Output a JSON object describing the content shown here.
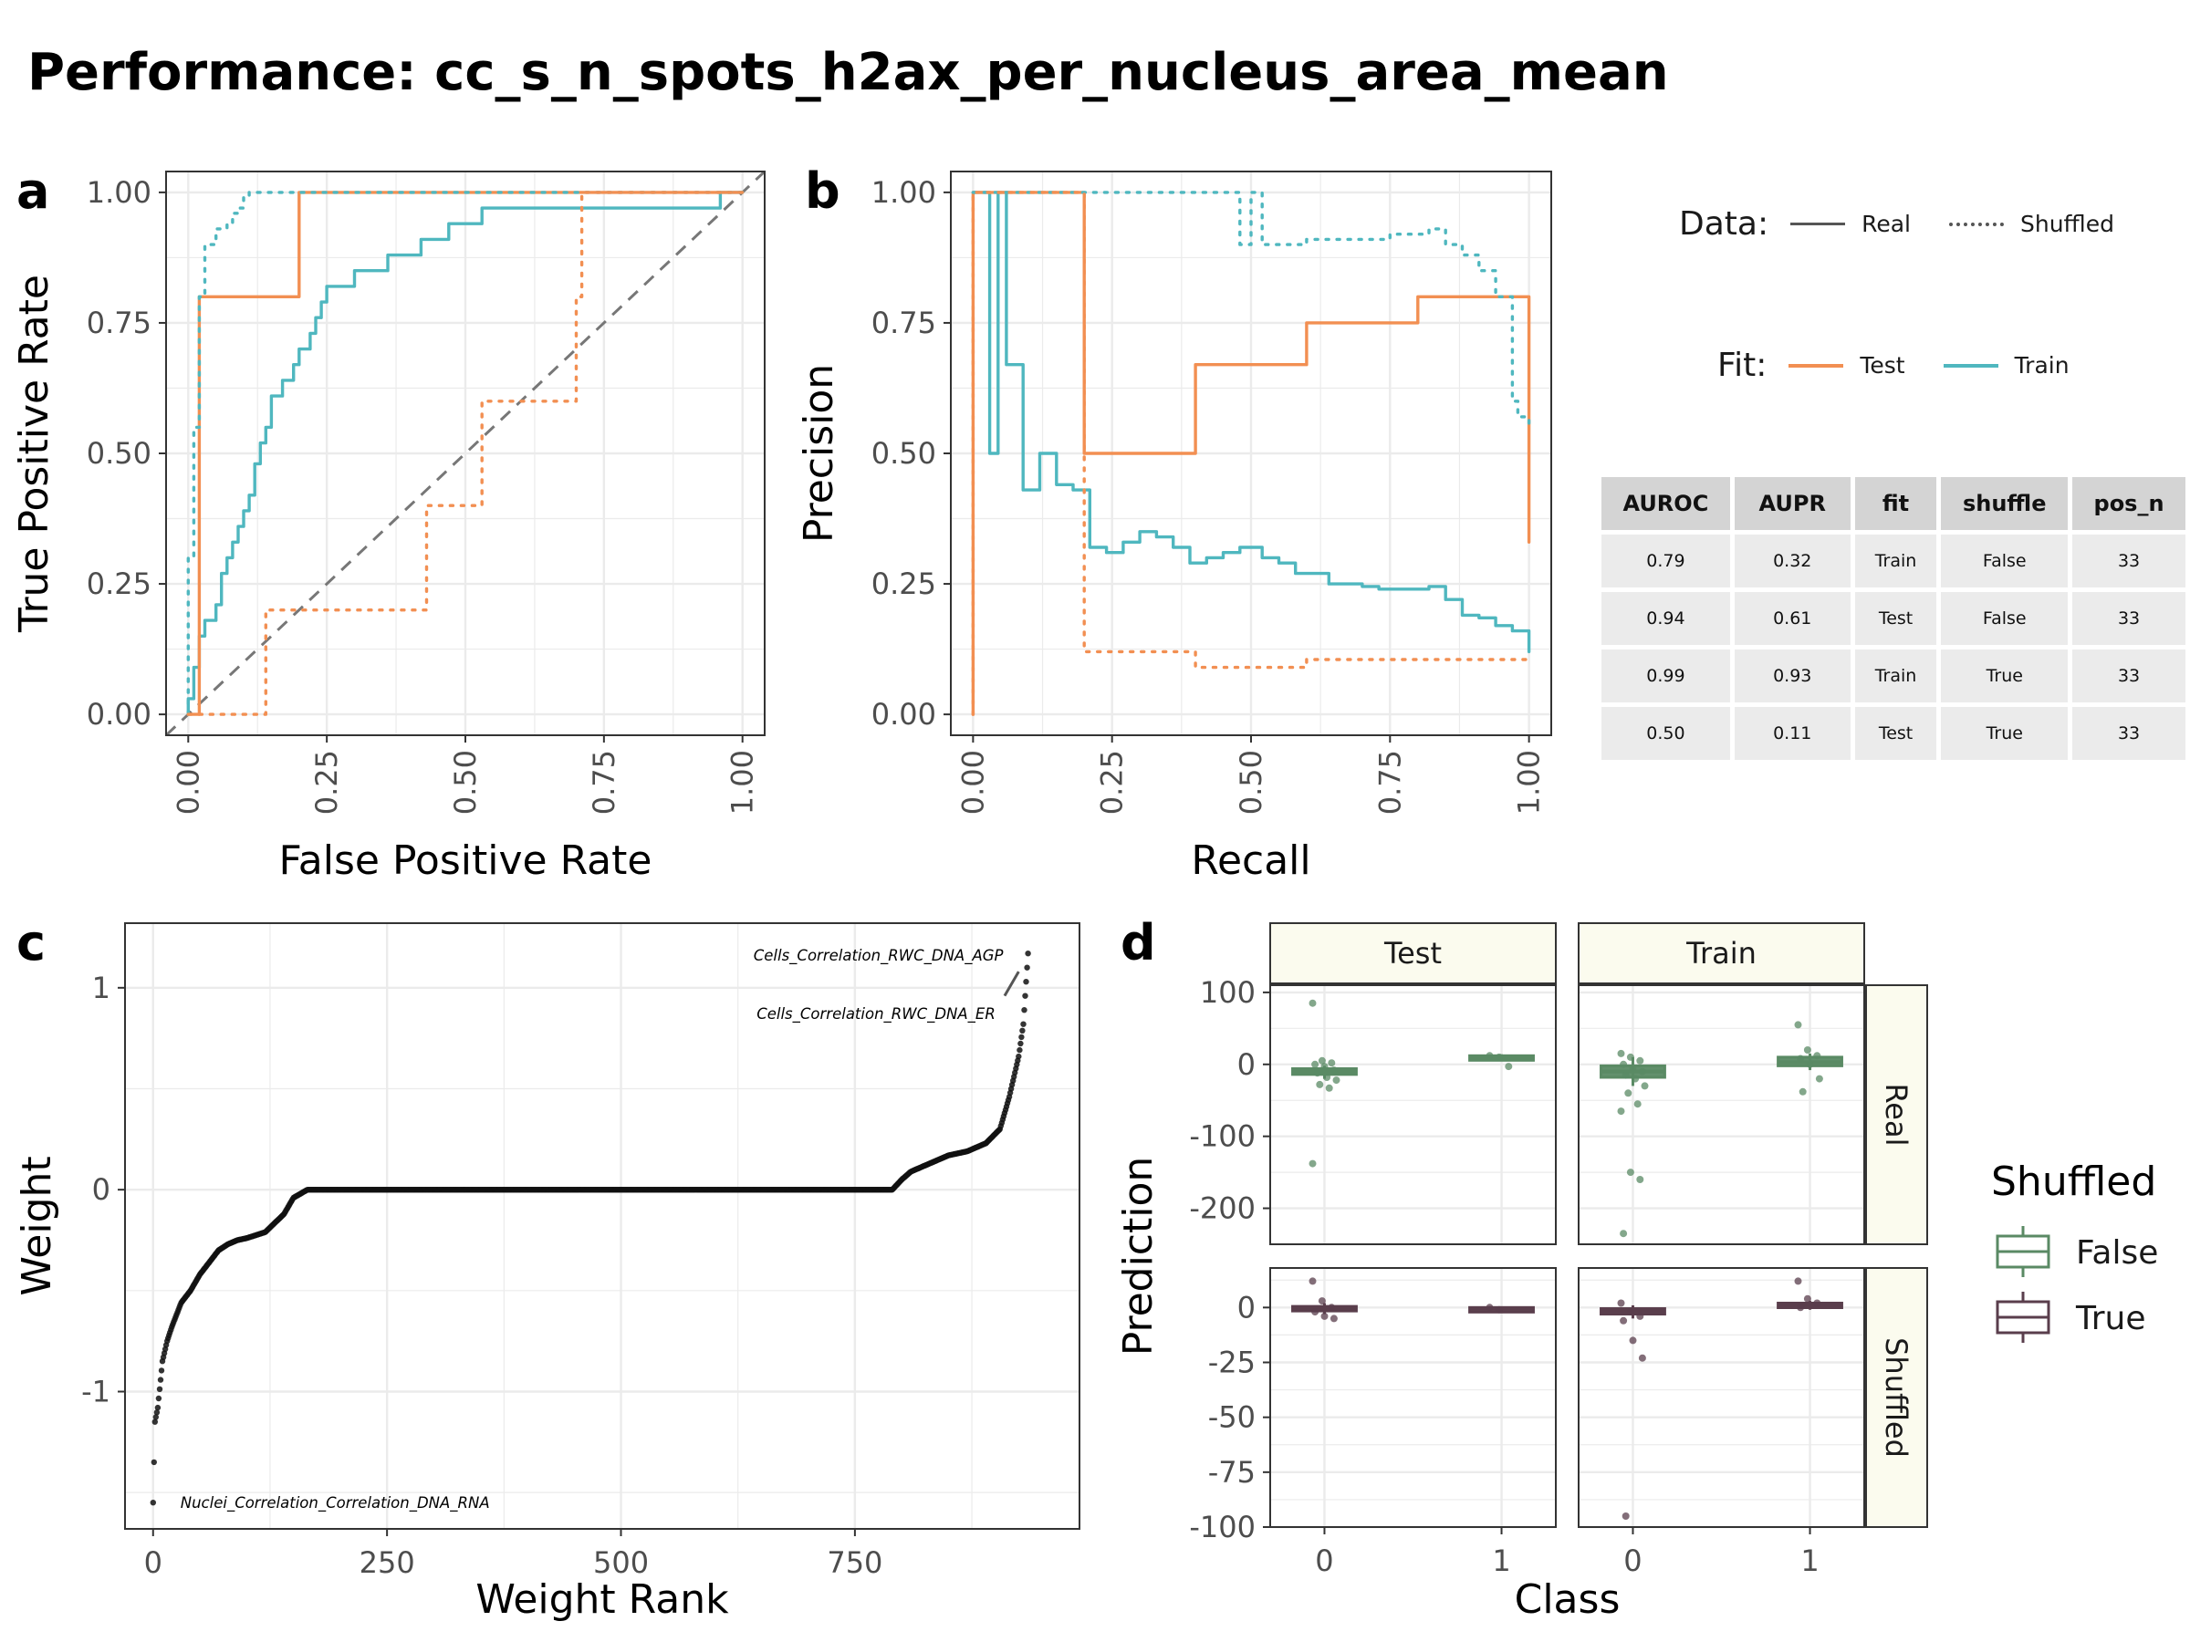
{
  "title": "Performance: cc_s_n_spots_h2ax_per_nucleus_area_mean",
  "colors": {
    "train": "#4fb7bf",
    "test": "#f28f52",
    "shuffled_false": "#5a8a64",
    "shuffled_true": "#5a3e4c",
    "grid": "#ebebeb",
    "diag": "#777777"
  },
  "legend_ab": {
    "data_title": "Data:",
    "data_real": "Real",
    "data_shuffled": "Shuffled",
    "fit_title": "Fit:",
    "fit_test": "Test",
    "fit_train": "Train"
  },
  "metrics_table": {
    "headers": [
      "AUROC",
      "AUPR",
      "fit",
      "shuffle",
      "pos_n"
    ],
    "rows": [
      [
        "0.79",
        "0.32",
        "Train",
        "False",
        "33"
      ],
      [
        "0.94",
        "0.61",
        "Test",
        "False",
        "33"
      ],
      [
        "0.99",
        "0.93",
        "Train",
        "True",
        "33"
      ],
      [
        "0.50",
        "0.11",
        "Test",
        "True",
        "33"
      ]
    ]
  },
  "panel_tags": {
    "a": "a",
    "b": "b",
    "c": "c",
    "d": "d"
  },
  "legend_d": {
    "title": "Shuffled",
    "items": [
      "False",
      "True"
    ]
  },
  "chart_data": [
    {
      "panel": "a",
      "type": "line",
      "title": "",
      "xlabel": "False Positive Rate",
      "ylabel": "True Positive Rate",
      "xlim": [
        -0.04,
        1.04
      ],
      "ylim": [
        -0.04,
        1.04
      ],
      "xticks": [
        "0.00",
        "0.25",
        "0.50",
        "0.75",
        "1.00"
      ],
      "yticks": [
        "0.00",
        "0.25",
        "0.50",
        "0.75",
        "1.00"
      ],
      "reference_line": "diagonal",
      "series": [
        {
          "name": "Train Real",
          "x": [
            0,
            0,
            0.01,
            0.01,
            0.02,
            0.02,
            0.03,
            0.03,
            0.05,
            0.05,
            0.06,
            0.06,
            0.07,
            0.07,
            0.08,
            0.08,
            0.09,
            0.09,
            0.1,
            0.1,
            0.11,
            0.11,
            0.12,
            0.12,
            0.13,
            0.13,
            0.14,
            0.14,
            0.15,
            0.15,
            0.17,
            0.17,
            0.19,
            0.19,
            0.2,
            0.2,
            0.22,
            0.22,
            0.23,
            0.23,
            0.24,
            0.24,
            0.25,
            0.25,
            0.26,
            0.26,
            0.27,
            0.27,
            0.28,
            0.28,
            0.3,
            0.3,
            0.32,
            0.32,
            0.36,
            0.36,
            0.38,
            0.38,
            0.42,
            0.42,
            0.45,
            0.45,
            0.47,
            0.47,
            0.5,
            0.5,
            0.53,
            0.53,
            0.57,
            0.57,
            0.6,
            0.6,
            0.96,
            0.96,
            1.0
          ],
          "y": [
            0,
            0.03,
            0.03,
            0.09,
            0.09,
            0.15,
            0.15,
            0.18,
            0.18,
            0.21,
            0.21,
            0.27,
            0.27,
            0.3,
            0.3,
            0.33,
            0.33,
            0.36,
            0.36,
            0.39,
            0.39,
            0.42,
            0.42,
            0.48,
            0.48,
            0.52,
            0.52,
            0.55,
            0.55,
            0.61,
            0.61,
            0.64,
            0.64,
            0.67,
            0.67,
            0.7,
            0.7,
            0.73,
            0.73,
            0.76,
            0.76,
            0.79,
            0.79,
            0.82,
            0.82,
            0.82,
            0.82,
            0.82,
            0.82,
            0.82,
            0.82,
            0.85,
            0.85,
            0.85,
            0.85,
            0.88,
            0.88,
            0.88,
            0.88,
            0.91,
            0.91,
            0.91,
            0.91,
            0.94,
            0.94,
            0.94,
            0.94,
            0.97,
            0.97,
            0.97,
            0.97,
            0.97,
            0.97,
            1.0,
            1.0
          ]
        },
        {
          "name": "Test Real",
          "x": [
            0,
            0.02,
            0.02,
            0.2,
            0.2,
            1.0
          ],
          "y": [
            0,
            0,
            0.8,
            0.8,
            1.0,
            1.0
          ]
        },
        {
          "name": "Train Shuffled",
          "x": [
            0,
            0,
            0.01,
            0.01,
            0.02,
            0.02,
            0.03,
            0.03,
            0.05,
            0.05,
            0.07,
            0.07,
            0.08,
            0.08,
            0.09,
            0.09,
            0.1,
            0.1,
            0.11,
            0.11,
            1.0
          ],
          "y": [
            0,
            0.3,
            0.3,
            0.55,
            0.55,
            0.8,
            0.8,
            0.9,
            0.9,
            0.93,
            0.93,
            0.94,
            0.94,
            0.96,
            0.96,
            0.97,
            0.97,
            0.99,
            0.99,
            1.0,
            1.0
          ]
        },
        {
          "name": "Test Shuffled",
          "x": [
            0,
            0.14,
            0.14,
            0.43,
            0.43,
            0.53,
            0.53,
            0.7,
            0.7,
            0.71,
            0.71,
            1.0
          ],
          "y": [
            0,
            0,
            0.2,
            0.2,
            0.4,
            0.4,
            0.6,
            0.6,
            0.8,
            0.8,
            1.0,
            1.0
          ]
        }
      ]
    },
    {
      "panel": "b",
      "type": "line",
      "title": "",
      "xlabel": "Recall",
      "ylabel": "Precision",
      "xlim": [
        -0.04,
        1.04
      ],
      "ylim": [
        -0.04,
        1.04
      ],
      "xticks": [
        "0.00",
        "0.25",
        "0.50",
        "0.75",
        "1.00"
      ],
      "yticks": [
        "0.00",
        "0.25",
        "0.50",
        "0.75",
        "1.00"
      ],
      "series": [
        {
          "name": "Train Real",
          "x": [
            0,
            0,
            0.03,
            0.03,
            0.045,
            0.045,
            0.06,
            0.06,
            0.09,
            0.09,
            0.12,
            0.12,
            0.15,
            0.15,
            0.18,
            0.18,
            0.21,
            0.21,
            0.24,
            0.24,
            0.27,
            0.27,
            0.3,
            0.3,
            0.33,
            0.33,
            0.36,
            0.36,
            0.39,
            0.39,
            0.42,
            0.42,
            0.45,
            0.45,
            0.48,
            0.48,
            0.52,
            0.52,
            0.55,
            0.55,
            0.58,
            0.58,
            0.61,
            0.61,
            0.64,
            0.64,
            0.67,
            0.67,
            0.7,
            0.7,
            0.73,
            0.73,
            0.76,
            0.76,
            0.79,
            0.79,
            0.82,
            0.82,
            0.85,
            0.85,
            0.88,
            0.88,
            0.91,
            0.91,
            0.94,
            0.94,
            0.97,
            0.97,
            1.0,
            1.0
          ],
          "y": [
            1.0,
            1.0,
            1.0,
            0.5,
            0.5,
            1.0,
            1.0,
            0.67,
            0.67,
            0.43,
            0.43,
            0.5,
            0.5,
            0.44,
            0.44,
            0.43,
            0.43,
            0.32,
            0.32,
            0.31,
            0.31,
            0.33,
            0.33,
            0.35,
            0.35,
            0.34,
            0.34,
            0.32,
            0.32,
            0.29,
            0.29,
            0.3,
            0.3,
            0.31,
            0.31,
            0.32,
            0.32,
            0.3,
            0.3,
            0.29,
            0.29,
            0.27,
            0.27,
            0.27,
            0.27,
            0.25,
            0.25,
            0.25,
            0.25,
            0.245,
            0.245,
            0.24,
            0.24,
            0.24,
            0.24,
            0.24,
            0.24,
            0.245,
            0.245,
            0.22,
            0.22,
            0.19,
            0.19,
            0.185,
            0.185,
            0.17,
            0.17,
            0.16,
            0.16,
            0.12
          ]
        },
        {
          "name": "Test Real",
          "x": [
            0,
            0,
            0.2,
            0.2,
            0.4,
            0.4,
            0.6,
            0.6,
            0.8,
            0.8,
            1.0,
            1.0
          ],
          "y": [
            0,
            1.0,
            1.0,
            0.5,
            0.5,
            0.67,
            0.67,
            0.75,
            0.75,
            0.8,
            0.8,
            0.33
          ]
        },
        {
          "name": "Train Shuffled",
          "x": [
            0,
            0.48,
            0.48,
            0.5,
            0.5,
            0.52,
            0.52,
            0.6,
            0.6,
            0.75,
            0.75,
            0.82,
            0.82,
            0.85,
            0.85,
            0.88,
            0.88,
            0.91,
            0.91,
            0.94,
            0.94,
            0.97,
            0.97,
            0.98,
            0.98,
            1.0,
            1.0
          ],
          "y": [
            1.0,
            1.0,
            0.9,
            0.9,
            1.0,
            1.0,
            0.9,
            0.9,
            0.91,
            0.91,
            0.92,
            0.92,
            0.93,
            0.93,
            0.9,
            0.9,
            0.88,
            0.88,
            0.85,
            0.85,
            0.8,
            0.8,
            0.6,
            0.6,
            0.57,
            0.57,
            0.55
          ]
        },
        {
          "name": "Test Shuffled",
          "x": [
            0,
            0,
            0.2,
            0.2,
            0.4,
            0.4,
            0.6,
            0.6,
            1.0
          ],
          "y": [
            0,
            1.0,
            1.0,
            0.12,
            0.12,
            0.09,
            0.09,
            0.105,
            0.105
          ]
        }
      ]
    },
    {
      "panel": "c",
      "type": "scatter",
      "title": "",
      "xlabel": "Weight Rank",
      "ylabel": "Weight",
      "xlim": [
        -30,
        990
      ],
      "ylim": [
        -1.68,
        1.32
      ],
      "xticks": [
        0,
        250,
        500,
        750
      ],
      "yticks": [
        -1,
        0,
        1
      ],
      "n_points": 935,
      "curve_x": [
        0,
        2,
        5,
        10,
        15,
        20,
        30,
        40,
        50,
        60,
        70,
        80,
        90,
        100,
        120,
        140,
        150,
        165,
        790,
        800,
        810,
        830,
        850,
        870,
        890,
        905,
        915,
        925,
        930,
        935
      ],
      "curve_y": [
        -1.55,
        -1.15,
        -1.08,
        -0.85,
        -0.75,
        -0.68,
        -0.56,
        -0.5,
        -0.42,
        -0.36,
        -0.3,
        -0.27,
        -0.25,
        -0.24,
        -0.21,
        -0.12,
        -0.04,
        0,
        0,
        0.05,
        0.09,
        0.13,
        0.17,
        0.19,
        0.23,
        0.3,
        0.46,
        0.66,
        0.82,
        1.17
      ],
      "annotations": [
        {
          "text": "Cells_Correlation_RWC_DNA_AGP",
          "x": 930,
          "y": 1.17
        },
        {
          "text": "Cells_Correlation_RWC_DNA_ER",
          "x": 925,
          "y": 1.08
        },
        {
          "text": "Nuclei_Correlation_Correlation_DNA_RNA",
          "x": 0,
          "y": -1.55
        }
      ]
    },
    {
      "panel": "d",
      "type": "boxplot",
      "title": "",
      "xlabel": "Class",
      "ylabel": "Prediction",
      "facet_cols": [
        "Test",
        "Train"
      ],
      "facet_rows": [
        "Real",
        "Shuffled"
      ],
      "x_categories": [
        "0",
        "1"
      ],
      "rows": [
        {
          "row": "Real",
          "ylim": [
            -250,
            110
          ],
          "yticks": [
            100,
            0,
            -100,
            -200
          ],
          "cells": [
            {
              "col": "Test",
              "boxes": [
                {
                  "class": "0",
                  "q1": -14,
                  "median": -10,
                  "q3": -6,
                  "lower": -20,
                  "upper": -2
                },
                {
                  "class": "1",
                  "q1": 8,
                  "median": 10,
                  "q3": 12,
                  "lower": 6,
                  "upper": 14
                }
              ],
              "points": {
                "0": [
                  85,
                  5,
                  2,
                  0,
                  -3,
                  -8,
                  -12,
                  -18,
                  -22,
                  -28,
                  -33,
                  -138
                ],
                "1": [
                  12,
                  10,
                  -3
                ]
              }
            },
            {
              "col": "Train",
              "boxes": [
                {
                  "class": "0",
                  "q1": -18,
                  "median": -10,
                  "q3": -2,
                  "lower": -30,
                  "upper": 10
                },
                {
                  "class": "1",
                  "q1": -2,
                  "median": 3,
                  "q3": 10,
                  "lower": -8,
                  "upper": 15
                }
              ],
              "points": {
                "0": [
                  15,
                  10,
                  5,
                  0,
                  -5,
                  -10,
                  -15,
                  -20,
                  -30,
                  -40,
                  -55,
                  -65,
                  -150,
                  -160,
                  -235
                ],
                "1": [
                  55,
                  20,
                  12,
                  8,
                  0,
                  -20,
                  -38
                ]
              }
            }
          ]
        },
        {
          "row": "Shuffled",
          "ylim": [
            -100,
            18
          ],
          "yticks": [
            0,
            -25,
            -50,
            -75,
            -100
          ],
          "cells": [
            {
              "col": "Test",
              "boxes": [
                {
                  "class": "0",
                  "q1": -1.5,
                  "median": -0.5,
                  "q3": 0.5,
                  "lower": -3,
                  "upper": 2
                },
                {
                  "class": "1",
                  "q1": -1,
                  "median": -0.5,
                  "q3": 0,
                  "lower": -1.5,
                  "upper": 0.5
                }
              ],
              "points": {
                "0": [
                  12,
                  3,
                  0,
                  -2,
                  -4,
                  -5
                ],
                "1": [
                  0,
                  -1
                ]
              }
            },
            {
              "col": "Train",
              "boxes": [
                {
                  "class": "0",
                  "q1": -3,
                  "median": -1.5,
                  "q3": -0.5,
                  "lower": -5,
                  "upper": 1
                },
                {
                  "class": "1",
                  "q1": 0,
                  "median": 1,
                  "q3": 2,
                  "lower": -1,
                  "upper": 3
                }
              ],
              "points": {
                "0": [
                  2,
                  -2,
                  -4,
                  -6,
                  -15,
                  -23,
                  -95
                ],
                "1": [
                  12,
                  4,
                  2,
                  0
                ]
              }
            }
          ]
        }
      ]
    }
  ]
}
